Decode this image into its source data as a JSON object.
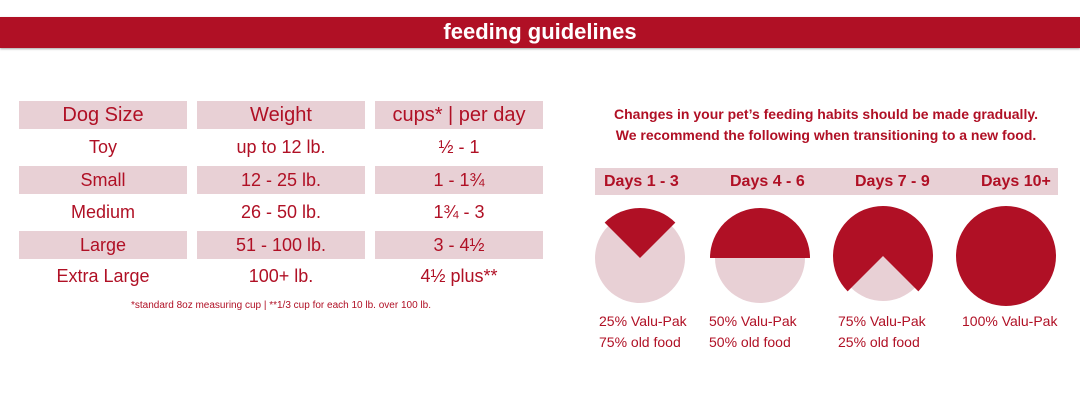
{
  "header": {
    "title": "feeding guidelines"
  },
  "table": {
    "columns": [
      "Dog Size",
      "Weight",
      "cups* | per day"
    ],
    "rows": [
      [
        "Toy",
        "up to 12 lb.",
        "½ - 1"
      ],
      [
        "Small",
        "12 - 25 lb.",
        "1 - 1¾"
      ],
      [
        "Medium",
        "26 - 50 lb.",
        "1¾ - 3"
      ],
      [
        "Large",
        "51 - 100 lb.",
        "3 - 4½"
      ],
      [
        "Extra Large",
        "100+ lb.",
        "4½ plus**"
      ]
    ],
    "footnote": "*standard 8oz measuring cup | **1/3 cup for each 10 lb. over 100 lb."
  },
  "transition": {
    "intro_line1": "Changes in your pet’s feeding habits should be made gradually.",
    "intro_line2": "We recommend the following when transitioning to a new food.",
    "stages": [
      {
        "days": "Days 1 - 3",
        "new_pct": 25,
        "line1": "25% Valu-Pak",
        "line2": "75% old food"
      },
      {
        "days": "Days 4 - 6",
        "new_pct": 50,
        "line1": "50% Valu-Pak",
        "line2": "50% old food"
      },
      {
        "days": "Days 7 - 9",
        "new_pct": 75,
        "line1": "75% Valu-Pak",
        "line2": "25% old food"
      },
      {
        "days": "Days 10+",
        "new_pct": 100,
        "line1": "100% Valu-Pak",
        "line2": ""
      }
    ]
  },
  "colors": {
    "brand": "#b01025",
    "light": "#e8d0d5"
  }
}
